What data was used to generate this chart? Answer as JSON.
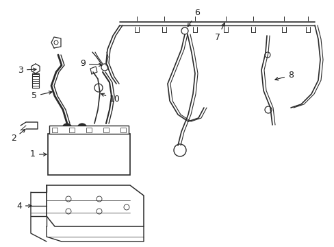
{
  "background_color": "#ffffff",
  "line_color": "#2a2a2a",
  "label_color": "#1a1a1a",
  "figure_width": 4.89,
  "figure_height": 3.6,
  "dpi": 100
}
